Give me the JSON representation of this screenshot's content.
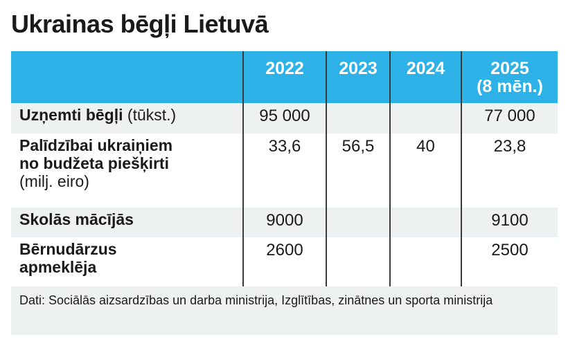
{
  "title": "Ukrainas bēgļi Lietuvā",
  "table": {
    "headers": [
      "",
      "2022",
      "2023",
      "2024",
      "2025",
      "(8 mēn.)"
    ],
    "rows": [
      {
        "label_bold": "Uzņemti bēgļi",
        "label_line2": "",
        "label_unit": " (tūkst.)",
        "values": [
          "95 000",
          "",
          "",
          "77 000"
        ]
      },
      {
        "label_bold": "Palīdzībai ukraiņiem",
        "label_line2": "no budžeta piešķirti",
        "label_unit": "(milj. eiro)",
        "values": [
          "33,6",
          "56,5",
          "40",
          "23,8"
        ]
      },
      {
        "label_bold": "Skolās mācījās",
        "label_line2": "",
        "label_unit": "",
        "values": [
          "9000",
          "",
          "",
          "9100"
        ]
      },
      {
        "label_bold": "Bērnudārzus",
        "label_line2": "apmeklēja",
        "label_unit": "",
        "values": [
          "2600",
          "",
          "",
          "2500"
        ]
      }
    ]
  },
  "source": "Dati: Sociālās aizsardzības un darba ministrija,  Izglītības, zinātnes un sporta ministrija",
  "colors": {
    "header_bg": "#2db1e7",
    "row_alt_bg": "#eef1f2",
    "divider": "#3a3a3a"
  }
}
